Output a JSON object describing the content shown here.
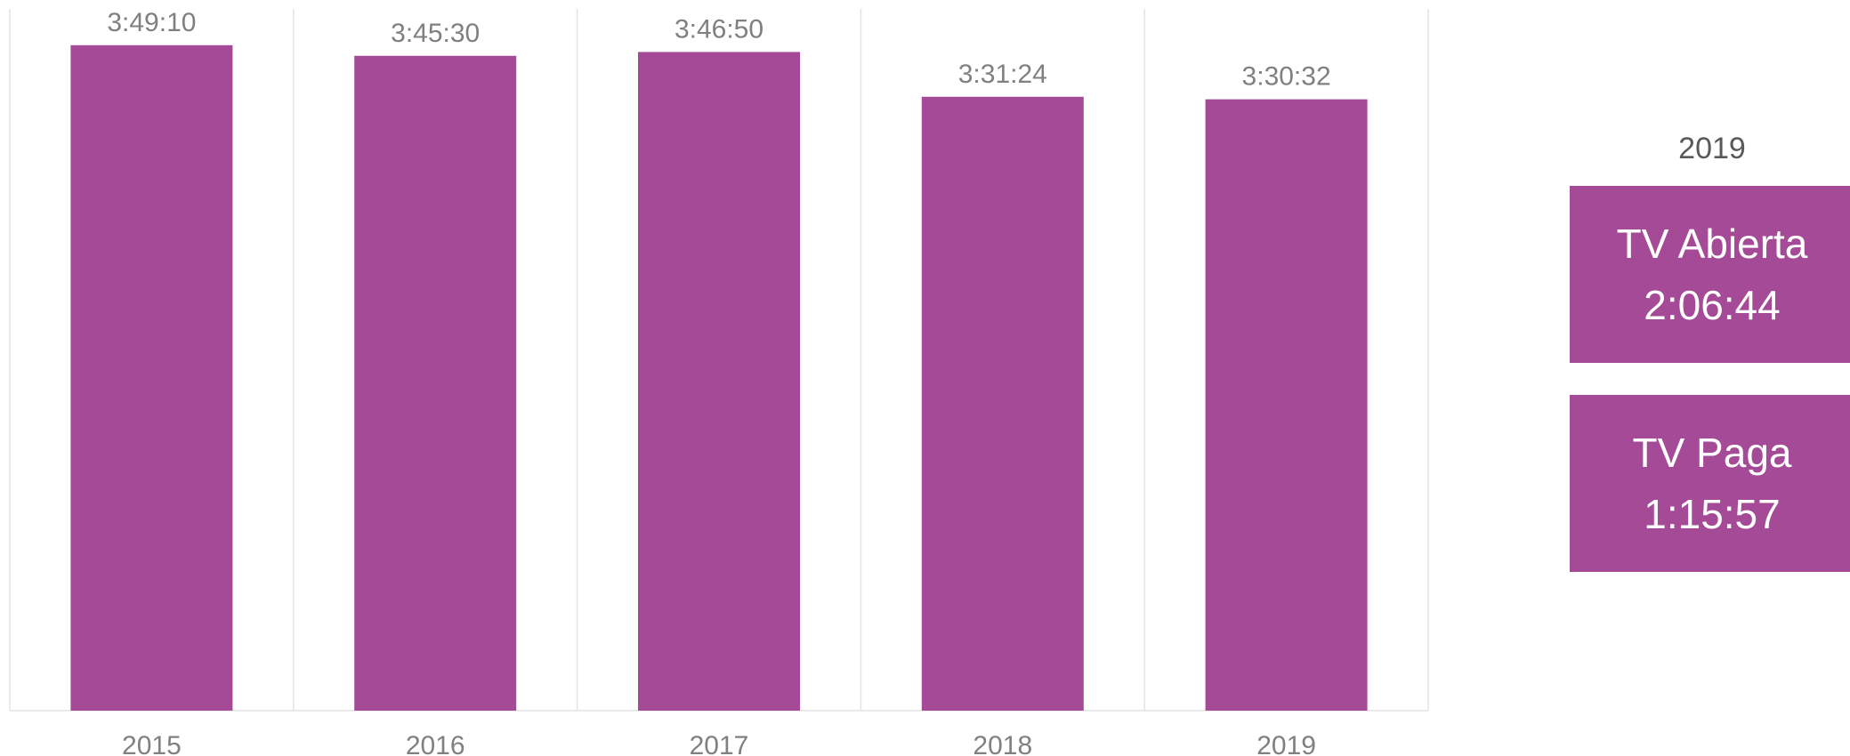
{
  "chart_data": {
    "type": "bar",
    "categories": [
      "2015",
      "2016",
      "2017",
      "2018",
      "2019"
    ],
    "values": [
      13750,
      13530,
      13610,
      12684,
      12632
    ],
    "data_labels": [
      "3:49:10",
      "3:45:30",
      "3:46:50",
      "3:31:24",
      "3:30:32"
    ],
    "value_unit": "seconds",
    "title": "",
    "xlabel": "",
    "ylabel": "",
    "ylim": [
      0,
      14500
    ],
    "grid": "vertical separators between categories",
    "bar_color": "#a54a96",
    "label_color": "#808080",
    "gridline_color": "#e4e4e4"
  },
  "side_panel": {
    "year": "2019",
    "box_color": "#a54a96",
    "boxes": [
      {
        "label": "TV Abierta",
        "value": "2:06:44"
      },
      {
        "label": "TV Paga",
        "value": "1:15:57"
      }
    ]
  }
}
